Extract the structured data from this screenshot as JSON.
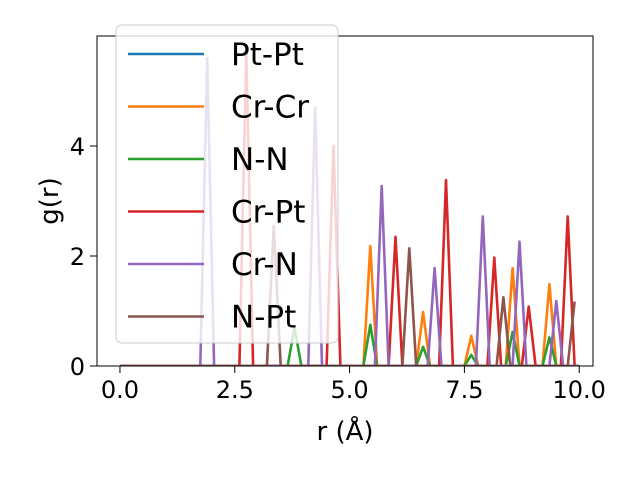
{
  "chart_data": {
    "type": "line",
    "title": "",
    "xlabel": "r (Å)",
    "ylabel": "g(r)",
    "xlim": [
      -0.5,
      10.3
    ],
    "ylim": [
      0,
      6.0
    ],
    "xticks": [
      0.0,
      2.5,
      5.0,
      7.5,
      10.0
    ],
    "xtick_labels": [
      "0.0",
      "2.5",
      "5.0",
      "7.5",
      "10.0"
    ],
    "yticks": [
      0,
      2,
      4
    ],
    "ytick_labels": [
      "0",
      "2",
      "4"
    ],
    "legend_position": "top-left",
    "series": [
      {
        "name": "Pt-Pt",
        "color": "#1f77b4",
        "points": [
          [
            0,
            0
          ],
          [
            10.0,
            0
          ]
        ]
      },
      {
        "name": "Cr-Cr",
        "color": "#ff7f0e",
        "points": [
          [
            0,
            0
          ],
          [
            5.3,
            0
          ],
          [
            5.45,
            2.18
          ],
          [
            5.6,
            0
          ],
          [
            6.45,
            0
          ],
          [
            6.6,
            0.98
          ],
          [
            6.75,
            0
          ],
          [
            7.5,
            0
          ],
          [
            7.65,
            0.55
          ],
          [
            7.8,
            0
          ],
          [
            8.4,
            0
          ],
          [
            8.55,
            1.78
          ],
          [
            8.7,
            0
          ],
          [
            9.2,
            0
          ],
          [
            9.35,
            1.49
          ],
          [
            9.5,
            0
          ],
          [
            10.0,
            0
          ]
        ]
      },
      {
        "name": "N-N",
        "color": "#2ca02c",
        "points": [
          [
            0,
            0
          ],
          [
            3.65,
            0
          ],
          [
            3.8,
            0.7
          ],
          [
            3.95,
            0
          ],
          [
            5.3,
            0
          ],
          [
            5.45,
            0.75
          ],
          [
            5.6,
            0
          ],
          [
            6.45,
            0
          ],
          [
            6.6,
            0.35
          ],
          [
            6.75,
            0
          ],
          [
            7.5,
            0
          ],
          [
            7.65,
            0.2
          ],
          [
            7.8,
            0
          ],
          [
            8.4,
            0
          ],
          [
            8.55,
            0.62
          ],
          [
            8.7,
            0
          ],
          [
            9.2,
            0
          ],
          [
            9.35,
            0.52
          ],
          [
            9.5,
            0
          ],
          [
            10.0,
            0
          ]
        ]
      },
      {
        "name": "Cr-Pt",
        "color": "#d62728",
        "points": [
          [
            0,
            0
          ],
          [
            2.6,
            0
          ],
          [
            2.75,
            5.7
          ],
          [
            2.9,
            0
          ],
          [
            4.5,
            0
          ],
          [
            4.65,
            4.0
          ],
          [
            4.8,
            0
          ],
          [
            5.85,
            0
          ],
          [
            6.0,
            2.35
          ],
          [
            6.15,
            0
          ],
          [
            6.95,
            0
          ],
          [
            7.1,
            3.38
          ],
          [
            7.25,
            0
          ],
          [
            8.0,
            0
          ],
          [
            8.15,
            1.97
          ],
          [
            8.3,
            0
          ],
          [
            8.75,
            0
          ],
          [
            8.9,
            1.08
          ],
          [
            9.05,
            0
          ],
          [
            9.6,
            0
          ],
          [
            9.75,
            2.72
          ],
          [
            9.9,
            0
          ],
          [
            10.0,
            0
          ]
        ]
      },
      {
        "name": "Cr-N",
        "color": "#9467bd",
        "points": [
          [
            0,
            0
          ],
          [
            1.75,
            0
          ],
          [
            1.9,
            5.6
          ],
          [
            2.05,
            0
          ],
          [
            4.1,
            0
          ],
          [
            4.25,
            4.7
          ],
          [
            4.4,
            0
          ],
          [
            5.55,
            0
          ],
          [
            5.7,
            3.27
          ],
          [
            5.85,
            0
          ],
          [
            6.7,
            0
          ],
          [
            6.85,
            1.78
          ],
          [
            7.0,
            0
          ],
          [
            7.75,
            0
          ],
          [
            7.9,
            2.72
          ],
          [
            8.05,
            0
          ],
          [
            8.55,
            0
          ],
          [
            8.7,
            2.26
          ],
          [
            8.85,
            0
          ],
          [
            9.35,
            0
          ],
          [
            9.5,
            1.18
          ],
          [
            9.65,
            0
          ],
          [
            10.0,
            0
          ]
        ]
      },
      {
        "name": "N-Pt",
        "color": "#8c564b",
        "points": [
          [
            0,
            0
          ],
          [
            3.2,
            0
          ],
          [
            3.35,
            2.55
          ],
          [
            3.5,
            0
          ],
          [
            6.15,
            0
          ],
          [
            6.3,
            2.14
          ],
          [
            6.45,
            0
          ],
          [
            8.2,
            0
          ],
          [
            8.35,
            1.25
          ],
          [
            8.5,
            0
          ],
          [
            9.75,
            0
          ],
          [
            9.9,
            1.17
          ]
        ]
      }
    ]
  }
}
